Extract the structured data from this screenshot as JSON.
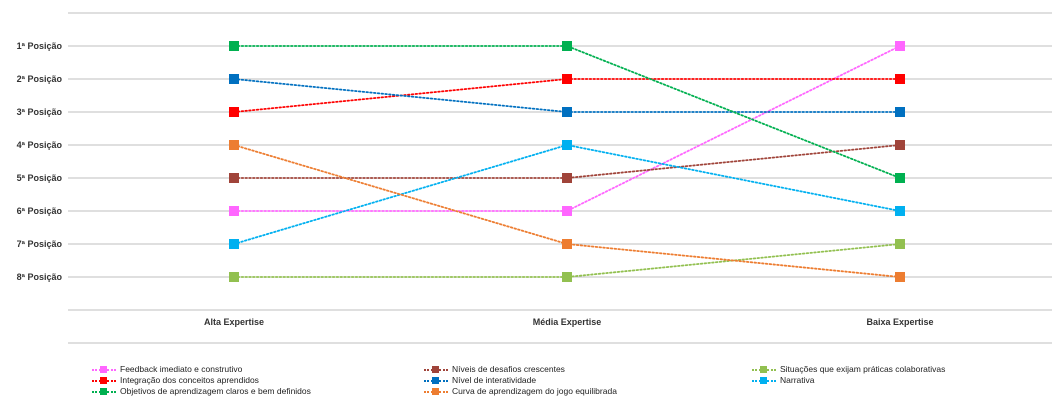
{
  "chart_data": {
    "type": "line",
    "title": "",
    "xlabel": "",
    "ylabel": "",
    "categories": [
      "Alta Expertise",
      "Média Expertise",
      "Baixa Expertise"
    ],
    "y_tick_labels": [
      "1ª Posição",
      "2ª Posição",
      "3ª Posição",
      "4ª Posição",
      "5ª Posição",
      "6ª Posição",
      "7ª Posição",
      "8ª Posição"
    ],
    "ylim": [
      0,
      9
    ],
    "y_reversed": true,
    "grid": true,
    "legend_position": "bottom",
    "series": [
      {
        "name": "Feedback imediato e construtivo",
        "color": "#FF66FF",
        "values": [
          6,
          6,
          1
        ]
      },
      {
        "name": "Níveis de desafios crescentes",
        "color": "#A0443A",
        "values": [
          5,
          5,
          4
        ]
      },
      {
        "name": "Situações que exijam práticas colaborativas",
        "color": "#92C050",
        "values": [
          8,
          8,
          7
        ]
      },
      {
        "name": "Integração dos conceitos aprendidos",
        "color": "#FF0000",
        "values": [
          3,
          2,
          2
        ]
      },
      {
        "name": "Nível de interatividade",
        "color": "#0070C0",
        "values": [
          2,
          3,
          3
        ]
      },
      {
        "name": "Narrativa",
        "color": "#00B0F0",
        "values": [
          7,
          4,
          6
        ]
      },
      {
        "name": "Objetivos de aprendizagem claros e bem definidos",
        "color": "#00B050",
        "values": [
          1,
          1,
          5
        ]
      },
      {
        "name": "Curva de aprendizagem do jogo equilibrada",
        "color": "#ED7D31",
        "values": [
          4,
          7,
          8
        ]
      }
    ]
  }
}
